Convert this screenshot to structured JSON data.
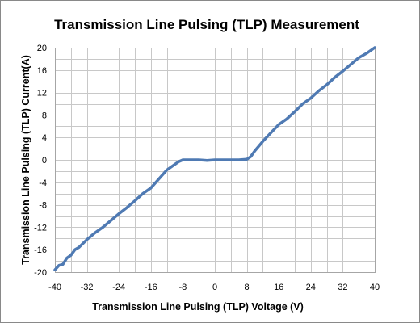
{
  "chart_data": {
    "type": "line",
    "title": "Transmission Line Pulsing (TLP) Measurement",
    "xlabel": "Transmission Line Pulsing (TLP) Voltage (V)",
    "ylabel": "Transmission Line Pulsing (TLP) Current(A)",
    "xlim": [
      -40,
      40
    ],
    "ylim": [
      -20,
      20
    ],
    "xticks": [
      "-40",
      "-32",
      "-24",
      "-16",
      "-8",
      "0",
      "8",
      "16",
      "24",
      "32",
      "40"
    ],
    "yticks": [
      "20",
      "16",
      "12",
      "8",
      "4",
      "0",
      "-4",
      "-8",
      "-12",
      "-16",
      "-20"
    ],
    "grid": true,
    "legend": "none",
    "line_color": "#4f7ab3",
    "series": [
      {
        "x": [
          -40,
          -39,
          -38,
          -37,
          -36,
          -35,
          -34,
          -32,
          -30,
          -28,
          -26,
          -24,
          -22,
          -20,
          -18,
          -16,
          -14,
          -12,
          -10,
          -9,
          -8,
          -6,
          -4,
          -2,
          0,
          2,
          4,
          6,
          8,
          9,
          10,
          12,
          14,
          16,
          18,
          20,
          22,
          24,
          26,
          28,
          30,
          32,
          34,
          36,
          38,
          40
        ],
        "y": [
          -19.6,
          -18.8,
          -18.6,
          -17.5,
          -17.0,
          -16.0,
          -15.6,
          -14.2,
          -13.0,
          -12.0,
          -10.8,
          -9.6,
          -8.5,
          -7.3,
          -6.0,
          -5.0,
          -3.4,
          -1.8,
          -0.8,
          -0.3,
          0.0,
          0.0,
          0.0,
          -0.1,
          0.0,
          0.0,
          0.0,
          0.0,
          0.1,
          0.6,
          1.6,
          3.3,
          4.8,
          6.3,
          7.3,
          8.6,
          10.0,
          11.0,
          12.3,
          13.4,
          14.7,
          15.8,
          17.0,
          18.2,
          19.0,
          20.0
        ]
      }
    ]
  }
}
